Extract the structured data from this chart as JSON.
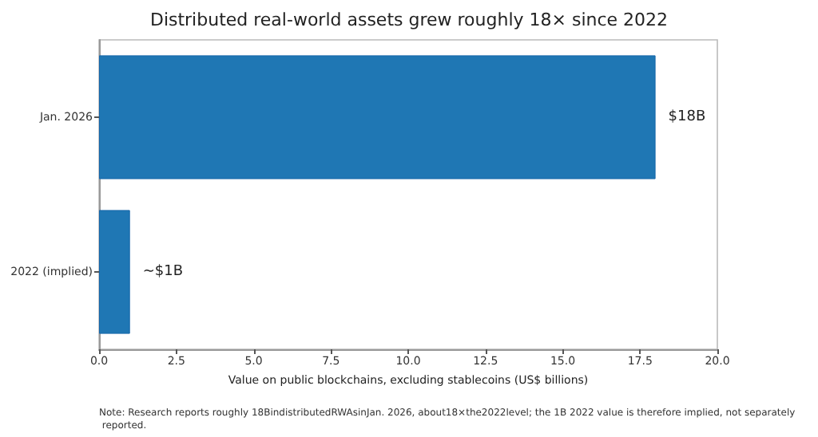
{
  "chart_data": {
    "type": "bar",
    "orientation": "horizontal",
    "title": "Distributed real-world assets grew roughly 18× since 2022",
    "xlabel": "Value on public blockchains, excluding stablecoins (US$ billions)",
    "categories": [
      "Jan. 2026",
      "2022 (implied)"
    ],
    "values": [
      18,
      1
    ],
    "color": "#1f77b4",
    "value_labels": [
      "$18B",
      "~$1B"
    ],
    "xlim": [
      0,
      20
    ],
    "xticks": [
      {
        "value": 0,
        "label": "0.0"
      },
      2.5,
      {
        "value": 5,
        "label": "5.0"
      },
      7.5,
      {
        "value": 10,
        "label": "10.0"
      },
      12.5,
      {
        "value": 15,
        "label": "15.0"
      },
      17.5,
      {
        "value": 20,
        "label": "20.0"
      }
    ],
    "grid": false,
    "annotations": [
      "Note: Research reports roughly 18BindistributedRWAsinJan. 2026, about18×the2022level; the 1B 2022 value is therefore implied, not separately reported."
    ]
  }
}
